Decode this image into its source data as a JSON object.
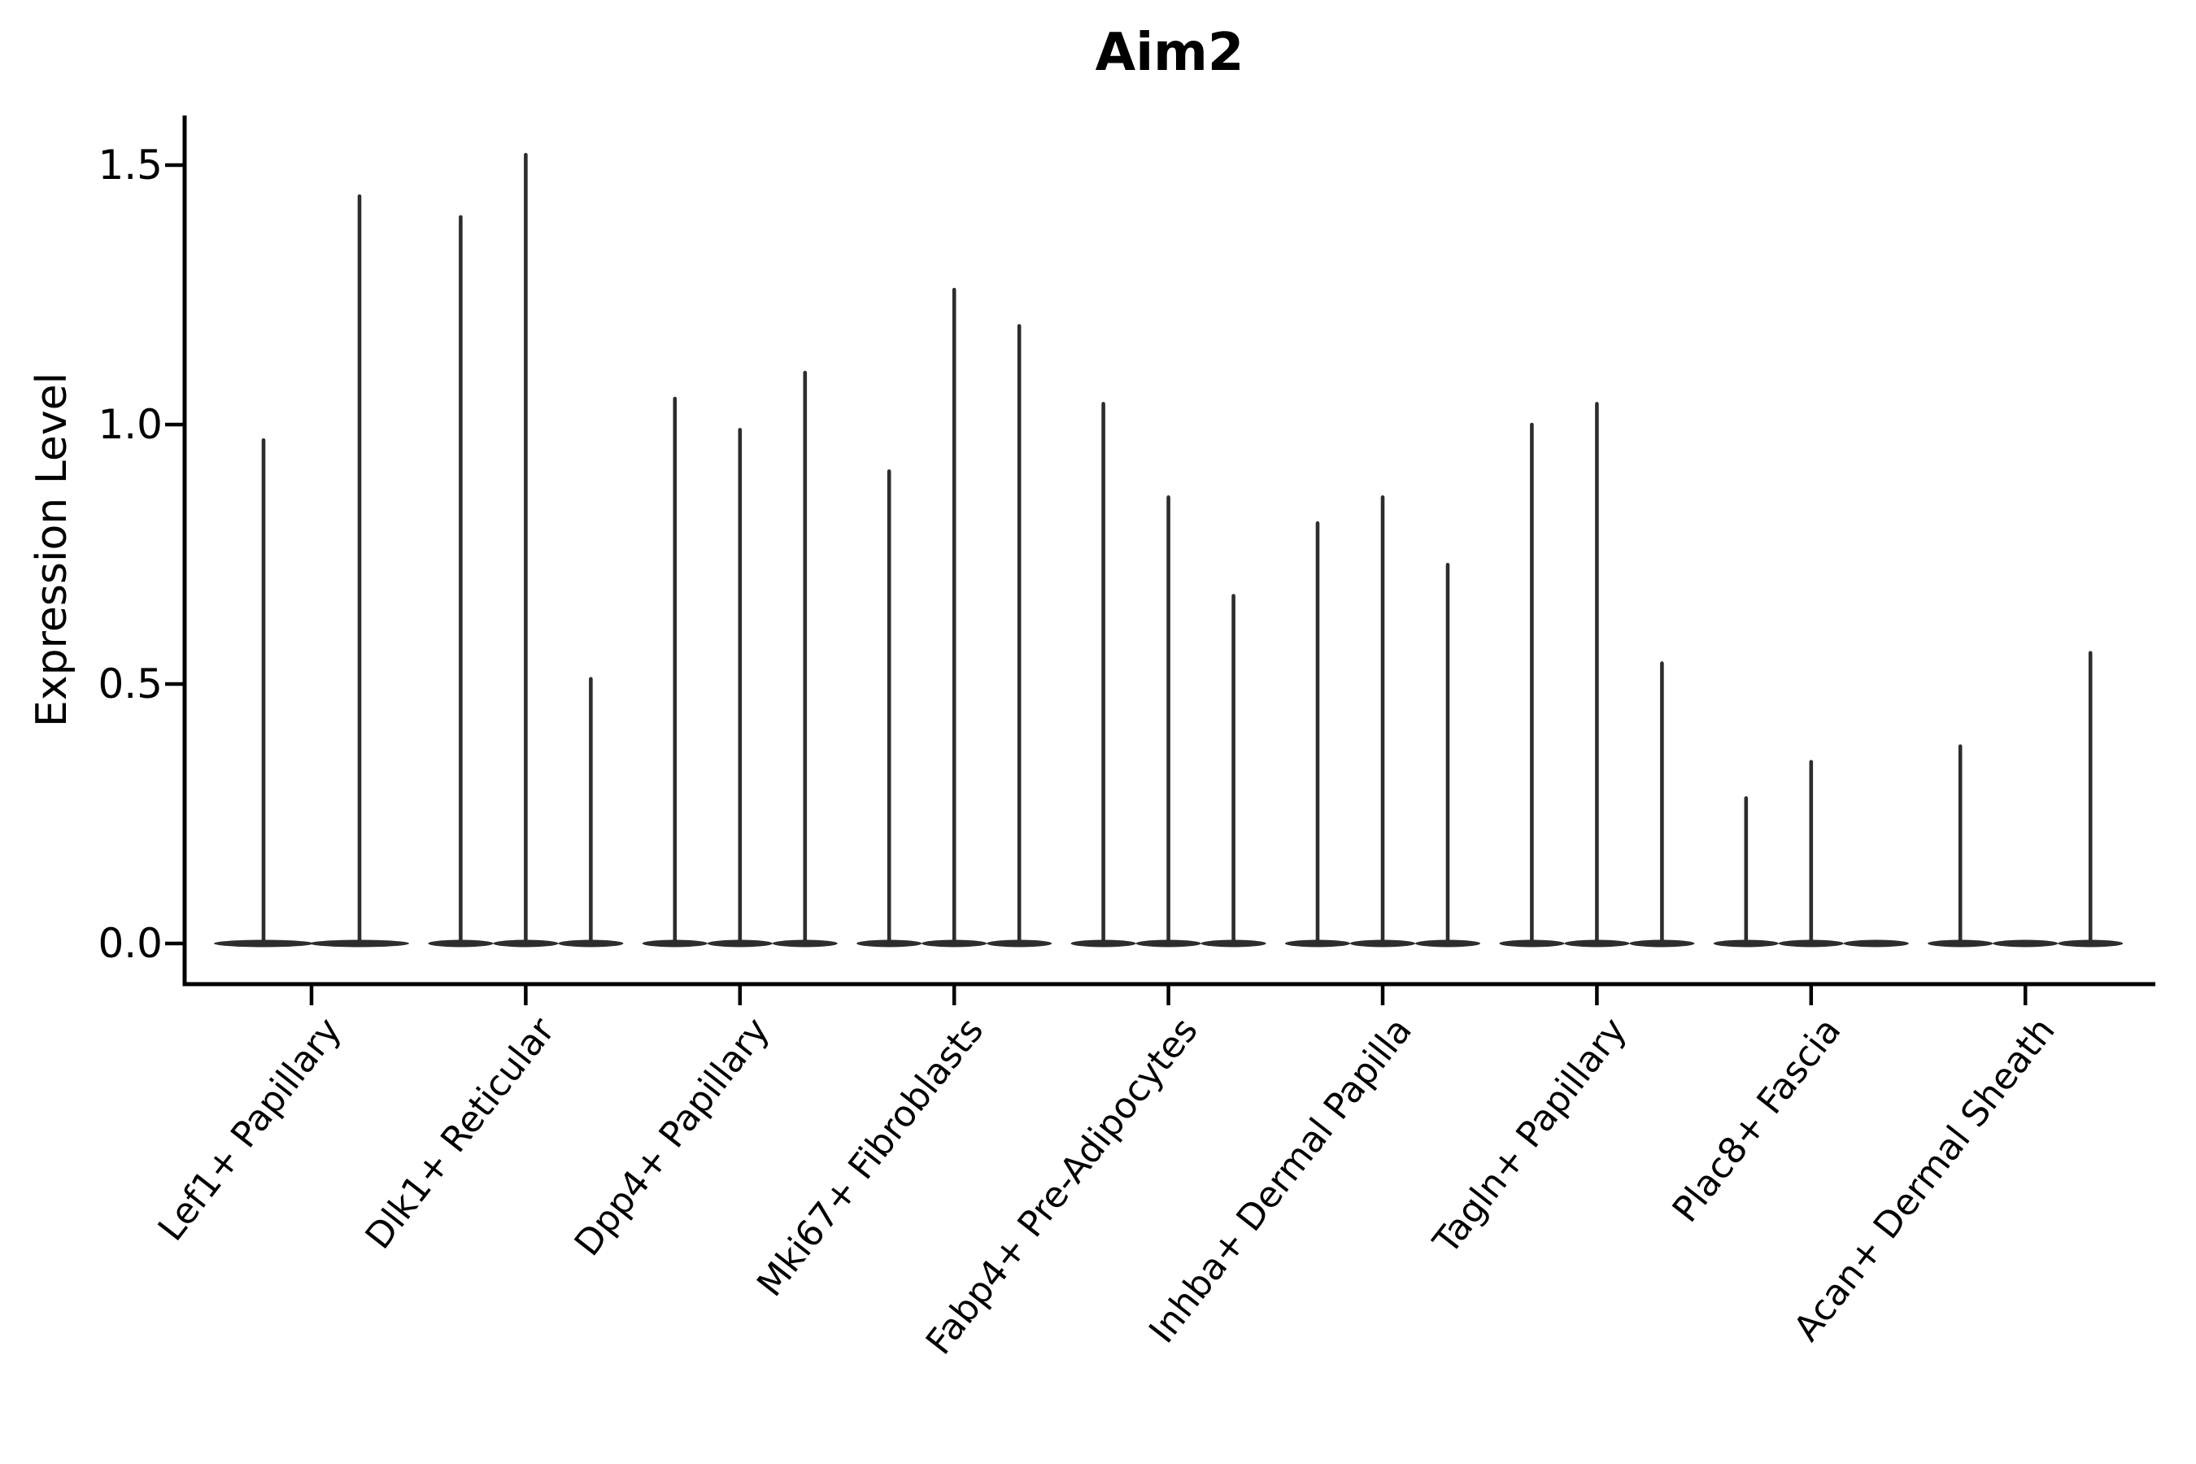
{
  "figure": {
    "title": "Aim2",
    "ylabel": "Expression Level",
    "background_color": "#ffffff",
    "violin_color": "#2d2d2d",
    "axis_color": "#000000"
  },
  "chart_data": {
    "type": "violin",
    "title": "Aim2",
    "xlabel": "",
    "ylabel": "Expression Level",
    "ylim": [
      -0.08,
      1.6
    ],
    "yticks": [
      0.0,
      0.5,
      1.0,
      1.5
    ],
    "ytick_labels": [
      "0.0",
      "0.5",
      "1.0",
      "1.5"
    ],
    "grid": false,
    "legend_position": "none",
    "categories": [
      "Lef1+ Papillary",
      "Dlk1+ Reticular",
      "Dpp4+ Papillary",
      "Mki67+ Fibroblasts",
      "Fabp4+ Pre-Adipocytes",
      "Inhba+ Dermal Papilla",
      "Tagln+ Papillary",
      "Plac8+ Fascia",
      "Acan+ Dermal Sheath"
    ],
    "groups": [
      {
        "category": "Lef1+ Papillary",
        "violin_max_values": [
          0.97,
          1.44
        ]
      },
      {
        "category": "Dlk1+ Reticular",
        "violin_max_values": [
          1.4,
          1.52,
          0.51
        ]
      },
      {
        "category": "Dpp4+ Papillary",
        "violin_max_values": [
          1.05,
          0.99,
          1.1
        ]
      },
      {
        "category": "Mki67+ Fibroblasts",
        "violin_max_values": [
          0.91,
          1.26,
          1.19
        ]
      },
      {
        "category": "Fabp4+ Pre-Adipocytes",
        "violin_max_values": [
          1.04,
          0.86,
          0.67
        ]
      },
      {
        "category": "Inhba+ Dermal Papilla",
        "violin_max_values": [
          0.81,
          0.86,
          0.73
        ]
      },
      {
        "category": "Tagln+ Papillary",
        "violin_max_values": [
          1.0,
          1.04,
          0.54
        ]
      },
      {
        "category": "Plac8+ Fascia",
        "violin_max_values": [
          0.28,
          0.35,
          0.0
        ]
      },
      {
        "category": "Acan+ Dermal Sheath",
        "violin_max_values": [
          0.38,
          0.0,
          0.56
        ]
      }
    ]
  }
}
